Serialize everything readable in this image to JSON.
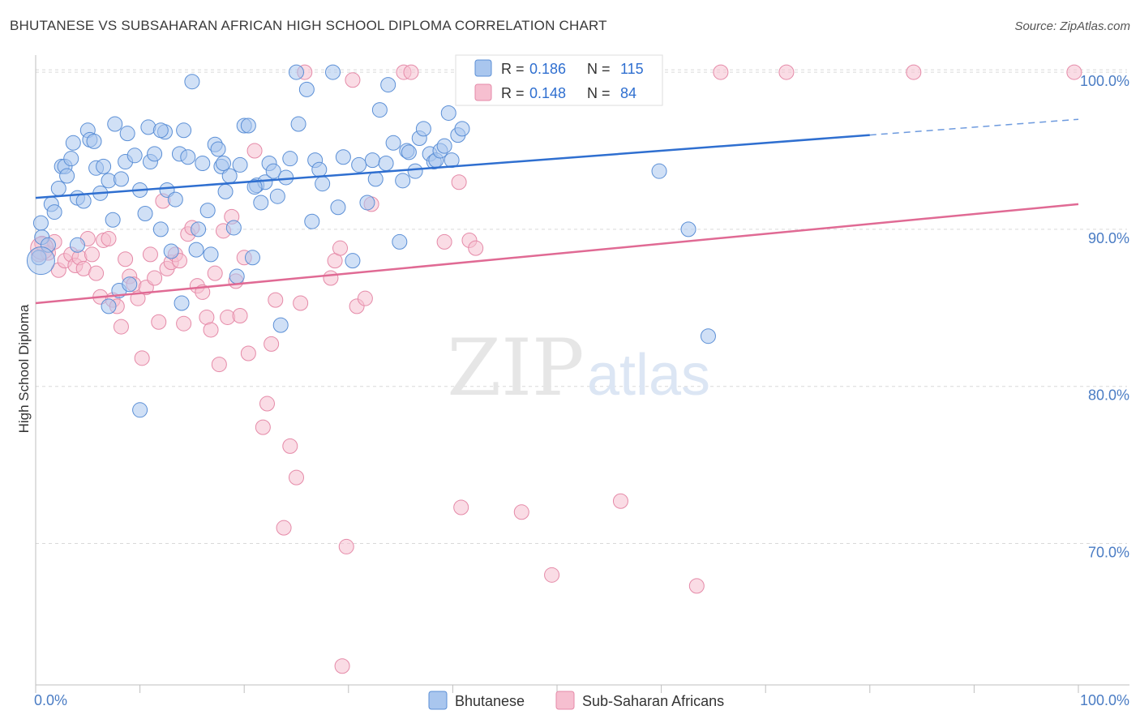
{
  "header": {
    "title": "BHUTANESE VS SUBSAHARAN AFRICAN HIGH SCHOOL DIPLOMA CORRELATION CHART",
    "source": "Source: ZipAtlas.com"
  },
  "watermark": {
    "zip": "ZIP",
    "atlas": "atlas"
  },
  "legend": {
    "r_label": "R =",
    "n_label": "N =",
    "rows": [
      {
        "r": "0.186",
        "n": "115"
      },
      {
        "r": "0.148",
        "n": "84"
      }
    ]
  },
  "colors": {
    "blue_fill": "#a9c6ee",
    "blue_stroke": "#5b8fd6",
    "blue_line": "#2f6fd0",
    "pink_fill": "#f6bfd0",
    "pink_stroke": "#e58aa8",
    "pink_line": "#e06a94",
    "grid": "#d9d9d9",
    "tick_text": "#4a7cc4"
  },
  "chart_data": {
    "type": "scatter",
    "title": "BHUTANESE VS SUBSAHARAN AFRICAN HIGH SCHOOL DIPLOMA CORRELATION CHART",
    "xlabel": "",
    "ylabel": "High School Diploma",
    "xlim": [
      0,
      100
    ],
    "ylim": [
      61,
      101.5
    ],
    "x_tick_labels": [
      "0.0%",
      "100.0%"
    ],
    "y_ticks": [
      70,
      80,
      90,
      100
    ],
    "y_tick_labels": [
      "70.0%",
      "80.0%",
      "90.0%",
      "100.0%"
    ],
    "grid": "horizontal dashed",
    "legend_position": "top-center",
    "series": [
      {
        "name": "Bhutanese",
        "trend": {
          "x0": 0,
          "y0": 92.0,
          "x1": 80,
          "y1": 96.0,
          "dashed_to_x": 100,
          "dashed_to_y": 97.0
        },
        "points": [
          [
            0.3,
            88.2
          ],
          [
            0.5,
            90.4
          ],
          [
            0.6,
            89.5
          ],
          [
            1.2,
            89.0
          ],
          [
            1.5,
            91.6
          ],
          [
            1.8,
            91.1
          ],
          [
            2.2,
            92.6
          ],
          [
            2.5,
            94.0
          ],
          [
            2.8,
            94.0
          ],
          [
            3.0,
            93.4
          ],
          [
            3.4,
            94.5
          ],
          [
            3.6,
            95.5
          ],
          [
            4.0,
            92.0
          ],
          [
            4.6,
            91.8
          ],
          [
            5.0,
            96.3
          ],
          [
            5.2,
            95.7
          ],
          [
            5.6,
            95.6
          ],
          [
            5.8,
            93.9
          ],
          [
            6.2,
            92.3
          ],
          [
            6.5,
            94.0
          ],
          [
            7.0,
            93.1
          ],
          [
            7.4,
            90.6
          ],
          [
            7.6,
            96.7
          ],
          [
            8.2,
            93.2
          ],
          [
            8.6,
            94.3
          ],
          [
            8.8,
            96.1
          ],
          [
            9.5,
            94.7
          ],
          [
            10.0,
            92.5
          ],
          [
            10.5,
            91.0
          ],
          [
            10.8,
            96.5
          ],
          [
            11.0,
            94.3
          ],
          [
            11.4,
            94.8
          ],
          [
            12.0,
            90.0
          ],
          [
            12.4,
            96.2
          ],
          [
            12.6,
            92.5
          ],
          [
            13.0,
            88.6
          ],
          [
            13.4,
            91.9
          ],
          [
            13.8,
            94.8
          ],
          [
            14.2,
            96.3
          ],
          [
            14.6,
            94.6
          ],
          [
            15.4,
            88.7
          ],
          [
            15.6,
            90.0
          ],
          [
            16.0,
            94.2
          ],
          [
            16.5,
            91.2
          ],
          [
            16.8,
            88.4
          ],
          [
            17.2,
            95.4
          ],
          [
            17.5,
            95.1
          ],
          [
            17.8,
            94.0
          ],
          [
            18.2,
            92.4
          ],
          [
            18.6,
            93.4
          ],
          [
            19.0,
            90.1
          ],
          [
            19.3,
            87.0
          ],
          [
            19.6,
            94.1
          ],
          [
            20.0,
            96.6
          ],
          [
            20.4,
            96.6
          ],
          [
            20.8,
            88.2
          ],
          [
            21.2,
            92.8
          ],
          [
            21.6,
            91.7
          ],
          [
            22.0,
            93.0
          ],
          [
            22.4,
            94.2
          ],
          [
            22.8,
            93.7
          ],
          [
            23.2,
            92.1
          ],
          [
            23.5,
            83.9
          ],
          [
            24.0,
            93.3
          ],
          [
            24.4,
            94.5
          ],
          [
            25.0,
            100.0
          ],
          [
            25.2,
            96.7
          ],
          [
            26.5,
            90.5
          ],
          [
            26.8,
            94.4
          ],
          [
            27.2,
            93.8
          ],
          [
            27.5,
            92.9
          ],
          [
            28.5,
            100.0
          ],
          [
            29.0,
            91.4
          ],
          [
            29.5,
            94.6
          ],
          [
            30.4,
            88.0
          ],
          [
            31.0,
            94.1
          ],
          [
            31.8,
            91.7
          ],
          [
            32.3,
            94.4
          ],
          [
            32.6,
            93.2
          ],
          [
            33.0,
            97.6
          ],
          [
            33.6,
            94.2
          ],
          [
            33.8,
            99.2
          ],
          [
            34.3,
            95.5
          ],
          [
            34.9,
            89.2
          ],
          [
            35.2,
            93.1
          ],
          [
            35.6,
            95.0
          ],
          [
            35.8,
            94.9
          ],
          [
            36.4,
            93.7
          ],
          [
            36.8,
            95.8
          ],
          [
            37.2,
            96.4
          ],
          [
            37.8,
            94.8
          ],
          [
            38.2,
            94.3
          ],
          [
            38.4,
            94.4
          ],
          [
            38.8,
            95.0
          ],
          [
            39.2,
            95.3
          ],
          [
            39.6,
            97.4
          ],
          [
            39.9,
            94.4
          ],
          [
            40.5,
            96.0
          ],
          [
            40.9,
            96.4
          ],
          [
            41.5,
            99.4
          ],
          [
            42.4,
            99.6
          ],
          [
            59.8,
            93.7
          ],
          [
            62.6,
            90.0
          ],
          [
            64.5,
            83.2
          ],
          [
            15.0,
            99.4
          ],
          [
            12.0,
            96.3
          ],
          [
            10.0,
            78.5
          ],
          [
            8.0,
            86.1
          ],
          [
            9.0,
            86.5
          ],
          [
            7.0,
            85.1
          ],
          [
            4.0,
            89.0
          ],
          [
            14.0,
            85.3
          ],
          [
            18.0,
            94.2
          ],
          [
            26.0,
            98.9
          ],
          [
            21.0,
            92.7
          ]
        ]
      },
      {
        "name": "Sub-Saharan Africans",
        "trend": {
          "x0": 0,
          "y0": 85.3,
          "x1": 100,
          "y1": 91.6
        },
        "points": [
          [
            0.3,
            88.4
          ],
          [
            0.6,
            89.1
          ],
          [
            1.2,
            88.5
          ],
          [
            1.8,
            89.2
          ],
          [
            2.2,
            87.4
          ],
          [
            2.8,
            88.0
          ],
          [
            3.4,
            88.4
          ],
          [
            3.8,
            87.7
          ],
          [
            4.2,
            88.2
          ],
          [
            4.6,
            87.5
          ],
          [
            5.0,
            89.4
          ],
          [
            5.4,
            88.4
          ],
          [
            5.8,
            87.2
          ],
          [
            6.2,
            85.7
          ],
          [
            6.5,
            89.3
          ],
          [
            7.0,
            89.4
          ],
          [
            7.4,
            85.5
          ],
          [
            7.8,
            85.1
          ],
          [
            8.2,
            83.8
          ],
          [
            8.6,
            88.1
          ],
          [
            9.0,
            87.0
          ],
          [
            9.4,
            86.5
          ],
          [
            9.8,
            85.6
          ],
          [
            10.2,
            81.8
          ],
          [
            10.6,
            86.3
          ],
          [
            11.0,
            88.4
          ],
          [
            11.4,
            86.9
          ],
          [
            11.8,
            84.1
          ],
          [
            12.2,
            91.8
          ],
          [
            12.6,
            87.5
          ],
          [
            13.0,
            87.9
          ],
          [
            13.4,
            88.4
          ],
          [
            13.8,
            88.0
          ],
          [
            14.2,
            84.0
          ],
          [
            14.6,
            89.7
          ],
          [
            15.0,
            90.1
          ],
          [
            15.5,
            86.4
          ],
          [
            16.0,
            86.0
          ],
          [
            16.4,
            84.4
          ],
          [
            16.8,
            83.6
          ],
          [
            17.2,
            87.2
          ],
          [
            17.6,
            81.4
          ],
          [
            18.0,
            89.9
          ],
          [
            18.4,
            84.4
          ],
          [
            18.8,
            90.8
          ],
          [
            19.2,
            86.7
          ],
          [
            19.6,
            84.5
          ],
          [
            20.0,
            88.2
          ],
          [
            20.4,
            82.1
          ],
          [
            21.0,
            95.0
          ],
          [
            21.8,
            77.4
          ],
          [
            22.2,
            78.9
          ],
          [
            22.6,
            82.7
          ],
          [
            23.0,
            85.5
          ],
          [
            23.8,
            71.0
          ],
          [
            24.4,
            76.2
          ],
          [
            25.0,
            74.2
          ],
          [
            25.4,
            85.3
          ],
          [
            25.8,
            100.0
          ],
          [
            28.3,
            86.9
          ],
          [
            28.7,
            88.0
          ],
          [
            29.2,
            88.8
          ],
          [
            29.4,
            62.2
          ],
          [
            29.8,
            69.8
          ],
          [
            30.4,
            99.5
          ],
          [
            30.8,
            85.1
          ],
          [
            31.6,
            85.6
          ],
          [
            32.2,
            91.6
          ],
          [
            35.3,
            100.0
          ],
          [
            36.0,
            100.0
          ],
          [
            39.2,
            89.2
          ],
          [
            40.6,
            93.0
          ],
          [
            40.8,
            72.3
          ],
          [
            41.6,
            89.3
          ],
          [
            42.2,
            88.8
          ],
          [
            46.6,
            72.0
          ],
          [
            49.5,
            68.0
          ],
          [
            52.5,
            100.0
          ],
          [
            56.1,
            72.7
          ],
          [
            63.4,
            67.3
          ],
          [
            65.7,
            100.0
          ],
          [
            72.0,
            100.0
          ],
          [
            84.2,
            100.0
          ],
          [
            99.6,
            100.0
          ]
        ]
      }
    ]
  },
  "bottom_legend": [
    {
      "label": "Bhutanese"
    },
    {
      "label": "Sub-Saharan Africans"
    }
  ]
}
